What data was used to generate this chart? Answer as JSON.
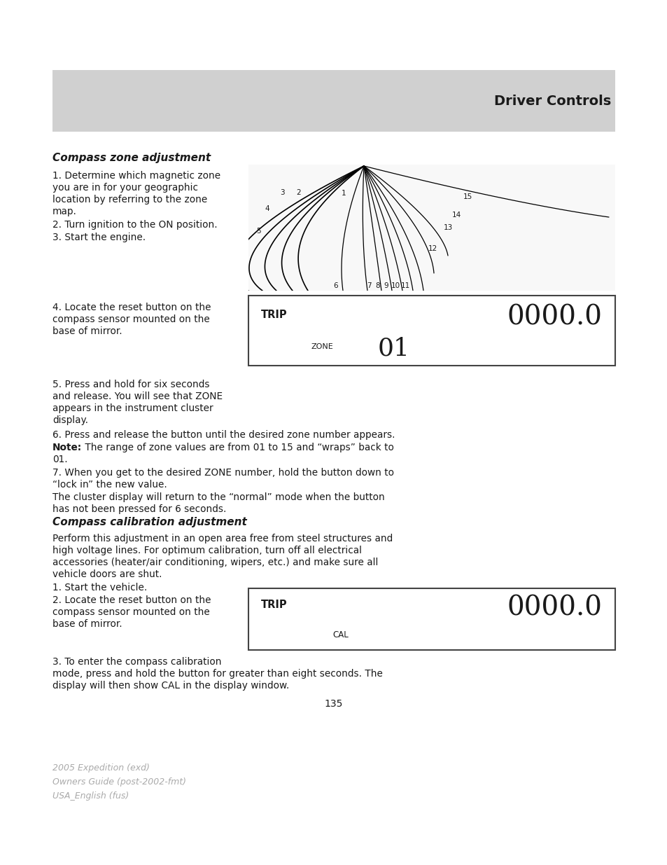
{
  "page_bg": "#ffffff",
  "header_bg": "#d0d0d0",
  "header_text": "Driver Controls",
  "header_text_color": "#1a1a1a",
  "section1_title": "Compass zone adjustment",
  "section2_title": "Compass calibration adjustment",
  "body_text_color": "#1a1a1a",
  "footer_text_color": "#aaaaaa",
  "page_number": "135",
  "footer_line1": "2005 Expedition (exd)",
  "footer_line2": "Owners Guide (post-2002-fmt)",
  "footer_line3": "USA_English (fus)",
  "display1_trip": "TRIP",
  "display1_digits": "0000.0",
  "display1_label": "ZONE",
  "display1_value": "01",
  "display2_trip": "TRIP",
  "display2_digits": "0000.0",
  "display2_label": "CAL",
  "note_bold": "Note:",
  "note_rest": " The range of zone values are from 01 to 15 and “wraps” back to"
}
